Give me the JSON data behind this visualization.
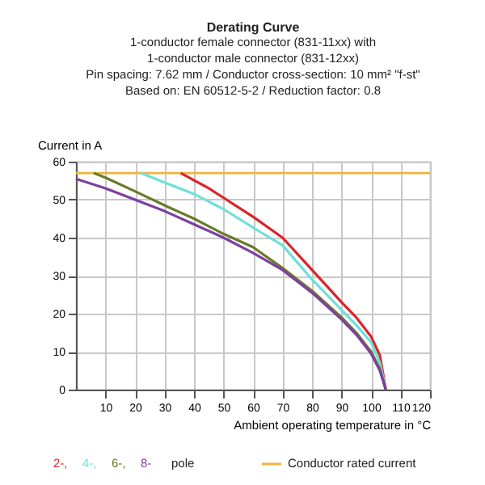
{
  "chart_data": {
    "type": "line",
    "title": "Derating Curve",
    "subtitle": [
      "1-conductor female connector (831-11xx) with",
      "1-conductor male connector (831-12xx)",
      "Pin spacing: 7.62 mm / Conductor cross-section: 10 mm² \"f-st\"",
      "Based on: EN 60512-5-2 / Reduction factor: 0.8"
    ],
    "xlabel": "Ambient operating temperature in °C",
    "ylabel": "Current in A",
    "series": [
      {
        "name": "2-,",
        "color": "#d9262b",
        "x": [
          35.5,
          45,
          51,
          60,
          70,
          80,
          90,
          95,
          100,
          103,
          105
        ],
        "values": [
          57,
          53,
          50,
          45.5,
          40,
          31.5,
          23,
          19,
          14,
          9,
          0
        ]
      },
      {
        "name": "4-,",
        "color": "#6ee0d8",
        "x": [
          22,
          30,
          40,
          50,
          62,
          70,
          80,
          90,
          95,
          100,
          103,
          105
        ],
        "values": [
          57,
          54.5,
          51.5,
          47.5,
          41.7,
          38,
          29,
          21,
          17,
          12.5,
          7,
          0
        ]
      },
      {
        "name": "6-,",
        "color": "#6b7a2a",
        "x": [
          6,
          10,
          20,
          30,
          40,
          50,
          60,
          70,
          80,
          90,
          95,
          100,
          103,
          105
        ],
        "values": [
          57,
          55.8,
          52.2,
          48.5,
          45,
          41,
          37.5,
          32,
          26,
          19,
          15,
          10,
          5.5,
          0
        ]
      },
      {
        "name": "8-",
        "color": "#7d3fa0",
        "x": [
          0,
          10,
          20,
          30,
          40,
          50,
          60,
          70,
          80,
          90,
          95,
          100,
          103,
          105
        ],
        "values": [
          55.5,
          53,
          50,
          47,
          43.5,
          40,
          36,
          31.5,
          25.5,
          18.5,
          14.5,
          9.5,
          5,
          0
        ]
      }
    ],
    "ref_lines": [
      {
        "axis": "y",
        "value": 57,
        "label": "Conductor rated current",
        "color": "#f0b43c"
      }
    ],
    "annotations": [
      "pole"
    ],
    "xlim": [
      0,
      120
    ],
    "xticks": [
      10,
      20,
      30,
      40,
      50,
      60,
      70,
      80,
      90,
      100,
      110,
      120
    ],
    "ylim": [
      0,
      60
    ],
    "yticks": [
      0,
      10,
      20,
      30,
      40,
      50,
      60
    ],
    "grid": true,
    "legend": "bottom",
    "marker": "none",
    "line_style": "solid"
  }
}
